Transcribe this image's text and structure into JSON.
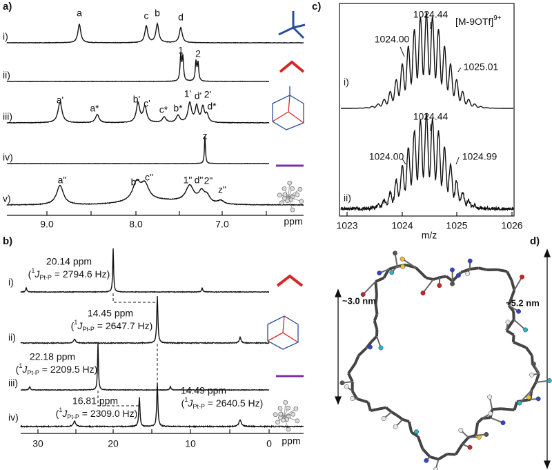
{
  "panels": {
    "a": {
      "label": "a)",
      "rows": [
        "i)",
        "ii)",
        "iii)",
        "iv)",
        "v)"
      ],
      "peak_labels": [
        [
          "a",
          "c",
          "b",
          "d"
        ],
        [
          "1",
          "2"
        ],
        [
          "a'",
          "a*",
          "b'",
          "c'",
          "c*",
          "b*",
          "1'",
          "d'",
          "2'",
          "d*"
        ],
        [
          "z"
        ],
        [
          "a\"",
          "b\"",
          "c\"",
          "1\"",
          "d\"",
          "2\"",
          "z\""
        ]
      ],
      "ticks": [
        "9.0",
        "8.0",
        "7.0"
      ],
      "unit": "ppm"
    },
    "b": {
      "label": "b)",
      "rows": [
        "i)",
        "ii)",
        "iii)",
        "iv)"
      ],
      "coupling_open": "(",
      "coupling_sup": "1",
      "coupling_j": "J",
      "coupling_sub": "Pt-P",
      "annotations": [
        {
          "shift": "20.14 ppm",
          "coupling": " = 2794.6 Hz)"
        },
        {
          "shift": "14.45 ppm",
          "coupling": " = 2647.7 Hz)"
        },
        {
          "shift": "22.18 ppm",
          "coupling": " = 2209.5 Hz)"
        },
        {
          "shift": "16.81 ppm",
          "coupling": " = 2309.0 Hz)"
        },
        {
          "shift": "14.49 ppm",
          "coupling": " = 2640.5 Hz)"
        }
      ],
      "ticks": [
        "30",
        "20",
        "10",
        "0"
      ],
      "unit": "ppm"
    },
    "c": {
      "label": "c)",
      "ion": "[M-9OTf]",
      "charge": "9+",
      "rows": [
        "i)",
        "ii)"
      ],
      "peak_labels": [
        [
          "1024.00",
          "1024.44",
          "1025.01"
        ],
        [
          "1024.00",
          "1024.44",
          "1024.99"
        ]
      ],
      "ticks": [
        "1023",
        "1024",
        "1025",
        "1026"
      ],
      "xlabel": "m/z"
    },
    "d": {
      "label": "d)",
      "dimensions": [
        "~3.0 nm",
        "~5.2 nm"
      ]
    }
  }
}
